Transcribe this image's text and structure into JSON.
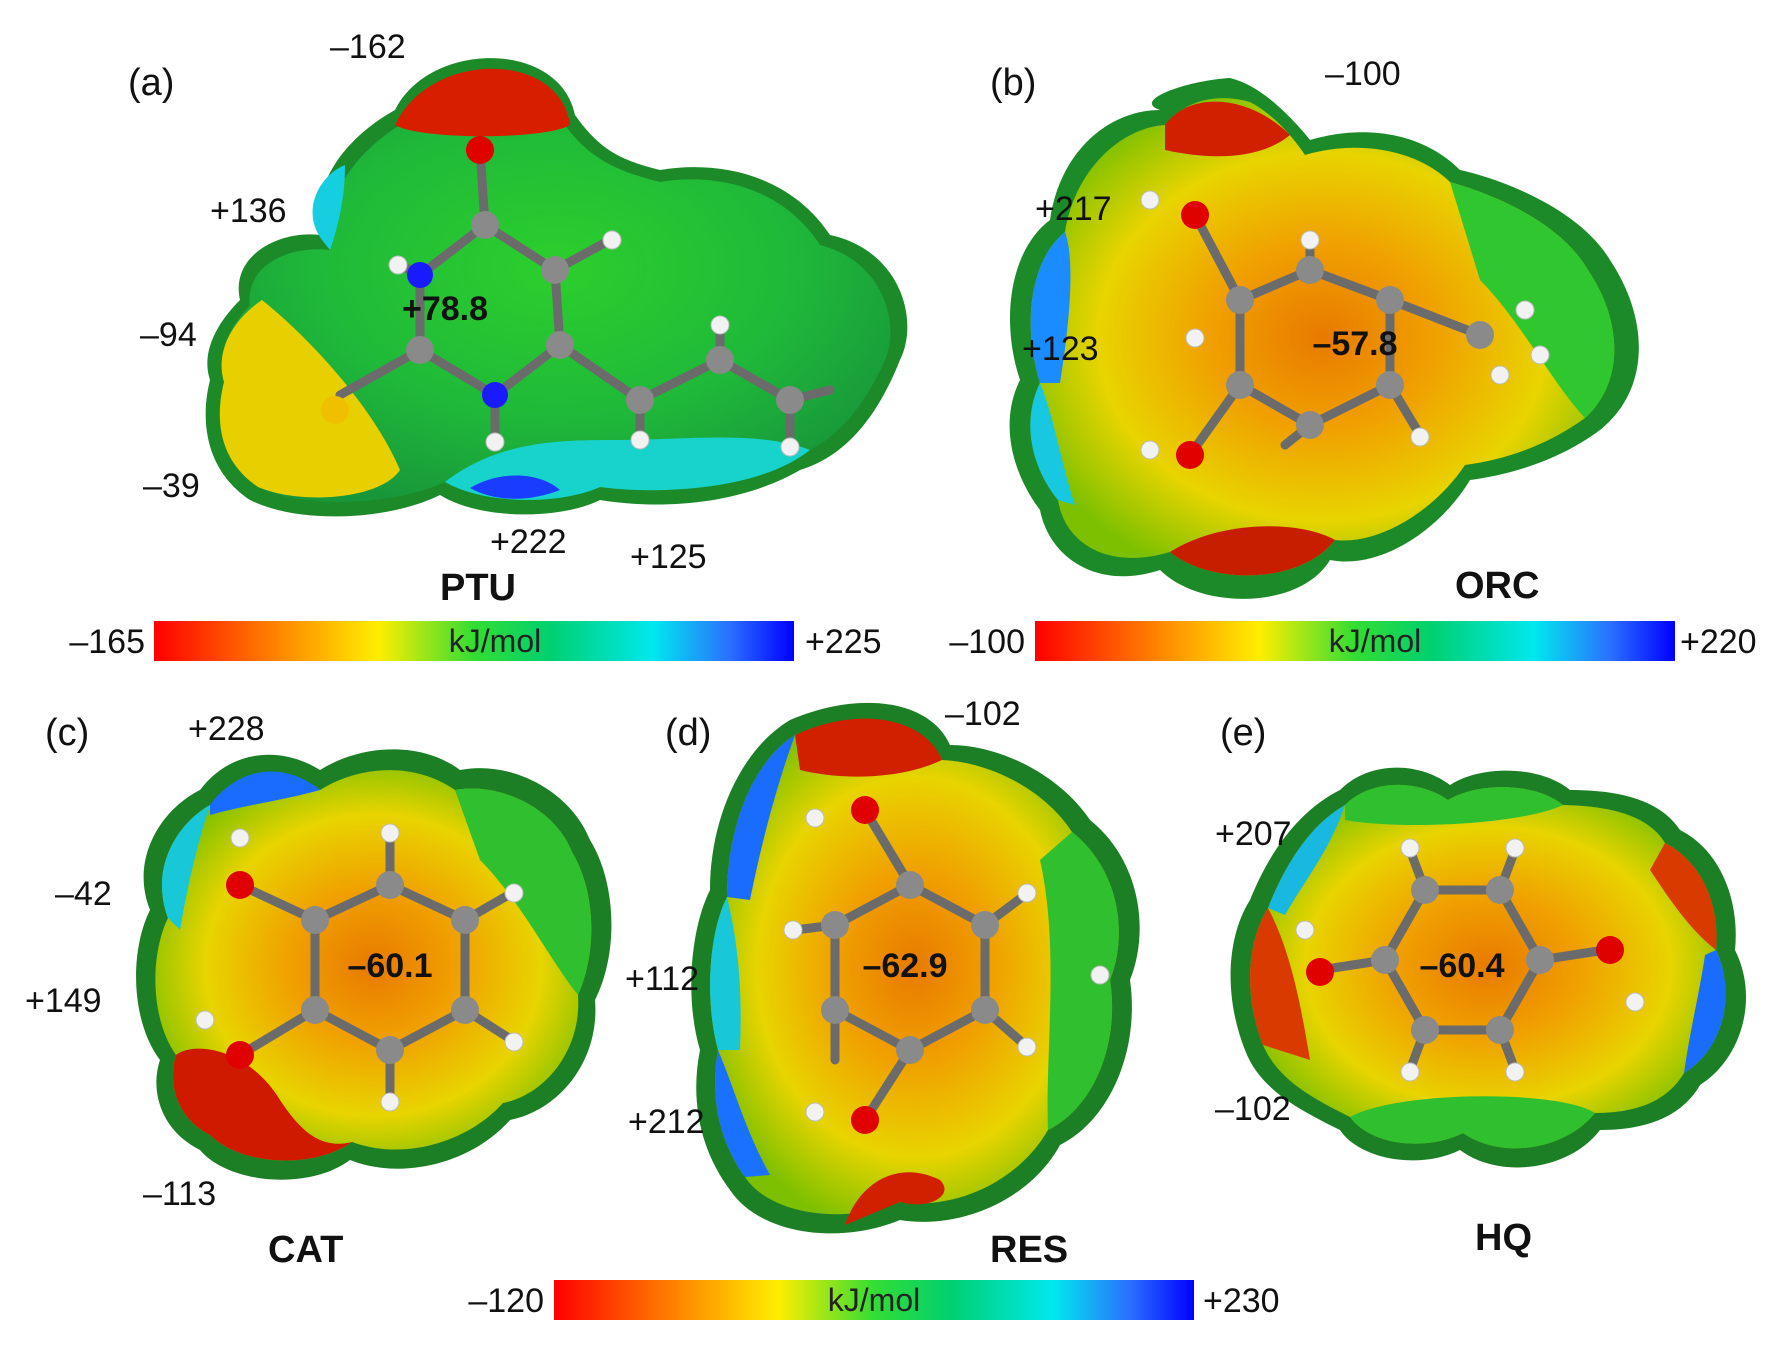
{
  "panels": [
    {
      "label": "(a)",
      "name": "PTU",
      "center_value": "+78.8",
      "values": [
        "–162",
        "+136",
        "–94",
        "–39",
        "+222",
        "+125"
      ]
    },
    {
      "label": "(b)",
      "name": "ORC",
      "center_value": "–57.8",
      "values": [
        "–100",
        "+217",
        "+123"
      ]
    },
    {
      "label": "(c)",
      "name": "CAT",
      "center_value": "–60.1",
      "values": [
        "+228",
        "–42",
        "+149",
        "–113"
      ]
    },
    {
      "label": "(d)",
      "name": "RES",
      "center_value": "–62.9",
      "values": [
        "–102",
        "+112",
        "+212"
      ]
    },
    {
      "label": "(e)",
      "name": "HQ",
      "center_value": "–60.4",
      "values": [
        "+207",
        "–102"
      ]
    }
  ],
  "colorbars": [
    {
      "min": "–165",
      "max": "+225",
      "unit": "kJ/mol"
    },
    {
      "min": "–100",
      "max": "+220",
      "unit": "kJ/mol"
    },
    {
      "min": "–120",
      "max": "+230",
      "unit": "kJ/mol"
    }
  ],
  "colors": {
    "negative": "#ff0000",
    "neutral": "#00dd33",
    "positive": "#0000ff",
    "surface_edge": "#1f7a1f",
    "carbon": "#8a8a8a",
    "hydrogen": "#f2f2f2",
    "oxygen": "#e00000",
    "nitrogen": "#1a1aff",
    "sulfur": "#f0c000"
  }
}
